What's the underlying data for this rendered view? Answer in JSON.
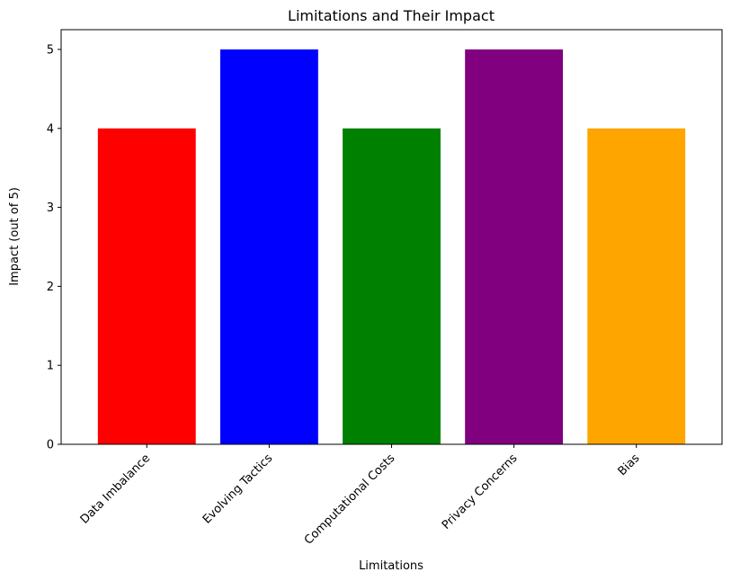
{
  "chart_data": {
    "type": "bar",
    "title": "Limitations and Their Impact",
    "xlabel": "Limitations",
    "ylabel": "Impact (out of 5)",
    "categories": [
      "Data Imbalance",
      "Evolving Tactics",
      "Computational Costs",
      "Privacy Concerns",
      "Bias"
    ],
    "values": [
      4,
      5,
      4,
      5,
      4
    ],
    "colors": [
      "#ff0000",
      "#0000ff",
      "#008000",
      "#800080",
      "#ffa500"
    ],
    "yticks": [
      0,
      1,
      2,
      3,
      4,
      5
    ],
    "ylim": [
      0,
      5.25
    ],
    "grid": false,
    "legend": "none"
  }
}
